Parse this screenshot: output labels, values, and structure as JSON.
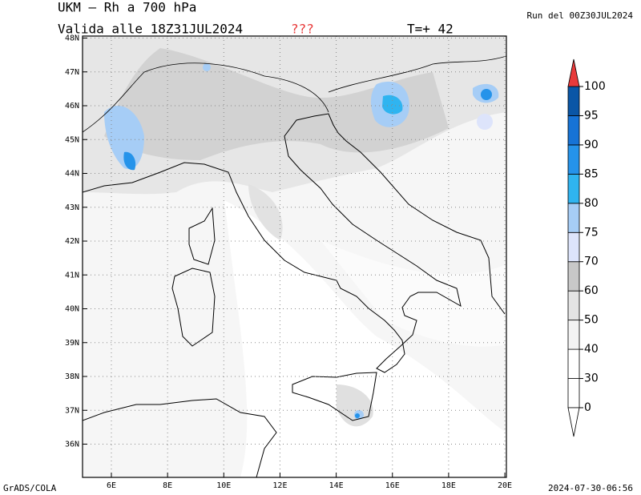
{
  "header": {
    "title": "UKM – Rh a 700 hPa",
    "valid": "Valida alle 18Z31JUL2024",
    "flag": "???",
    "step": "T=+ 42",
    "run": "Run del 00Z30JUL2024"
  },
  "map": {
    "lon_labels": [
      "6E",
      "8E",
      "10E",
      "12E",
      "14E",
      "16E",
      "18E",
      "20E"
    ],
    "lat_labels": [
      "48N",
      "47N",
      "46N",
      "45N",
      "44N",
      "43N",
      "42N",
      "41N",
      "40N",
      "39N",
      "38N",
      "37N",
      "36N"
    ]
  },
  "colorbar": {
    "levels": [
      0,
      30,
      40,
      50,
      60,
      70,
      75,
      80,
      85,
      90,
      95,
      100
    ],
    "colors": [
      "#ffffff",
      "#ffffff",
      "#f3f3f3",
      "#e4e4e4",
      "#c8c8c8",
      "#dde4fb",
      "#a6cdf6",
      "#2fb4f0",
      "#2593ea",
      "#1673d6",
      "#0a56a6"
    ],
    "over_color": "#e83a3a",
    "under_color": "#ffffff"
  },
  "footer": {
    "left": "GrADS/COLA",
    "right": "2024-07-30-06:56"
  }
}
